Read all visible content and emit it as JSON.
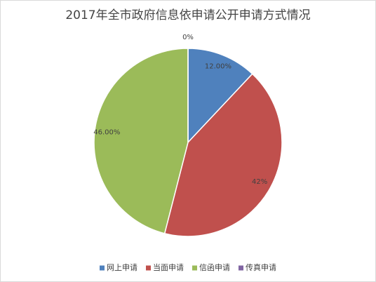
{
  "chart_data": {
    "type": "pie",
    "title": "2017年全市政府信息依申请公开申请方式情况",
    "categories": [
      "网上申请",
      "当面申请",
      "信函申请",
      "传真申请"
    ],
    "values": [
      12,
      42,
      46,
      0
    ],
    "value_labels": [
      "12.00%",
      "42%",
      "46.00%",
      "0%"
    ],
    "colors": [
      "#4f81bd",
      "#c0504d",
      "#9bbb59",
      "#8064a2"
    ],
    "legend": "bottom"
  }
}
